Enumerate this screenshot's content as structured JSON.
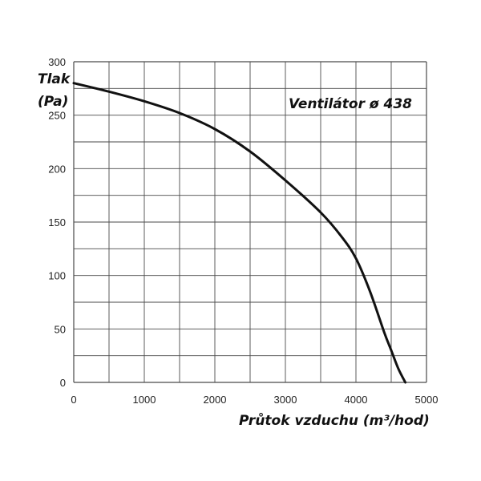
{
  "chart_data": {
    "type": "line",
    "ylabel_line1": "Tlak",
    "ylabel_line2": "(Pa)",
    "xlabel": "Průtok vzduchu (m³/hod)",
    "annotation": "Ventilátor ø 438",
    "xlim": [
      0,
      5000
    ],
    "ylim": [
      0,
      300
    ],
    "x_ticks": [
      0,
      1000,
      2000,
      3000,
      4000,
      5000
    ],
    "y_ticks": [
      0,
      50,
      100,
      150,
      200,
      250,
      300
    ],
    "x_grid_step": 500,
    "y_grid_step": 25,
    "grid": true,
    "series": [
      {
        "x": [
          0,
          500,
          1000,
          1500,
          2000,
          2500,
          3000,
          3500,
          3800,
          4000,
          4200,
          4400,
          4500,
          4600,
          4700
        ],
        "y": [
          280,
          272,
          263,
          252,
          237,
          216,
          189,
          159,
          136,
          116,
          85,
          47,
          30,
          13,
          0
        ]
      }
    ]
  },
  "colors": {
    "curve": "#111111",
    "grid": "#4a4a4a",
    "text": "#222222"
  }
}
